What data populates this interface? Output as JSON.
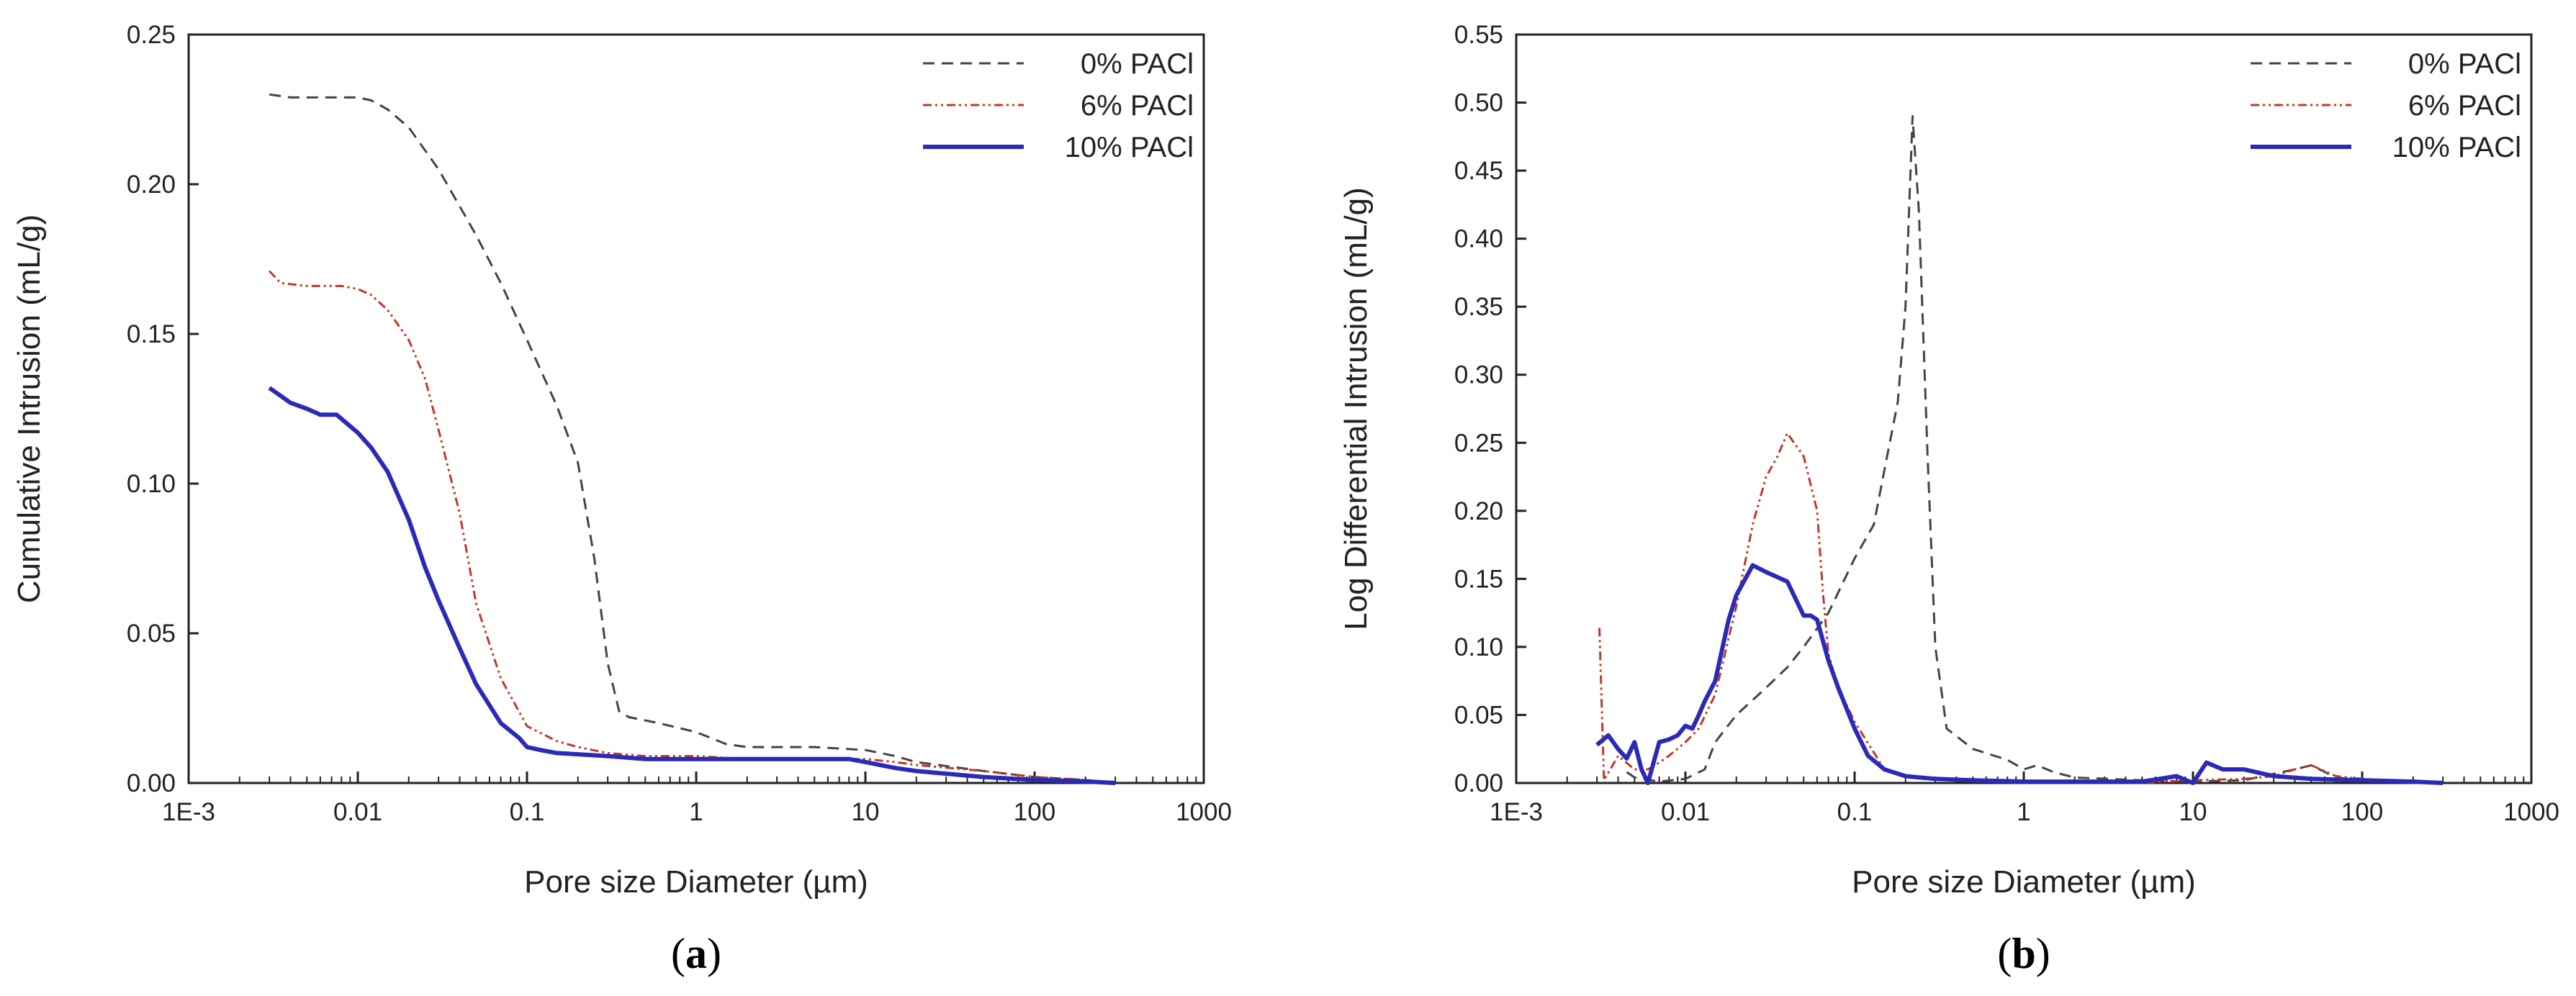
{
  "colors": {
    "s0": "#444444",
    "s6": "#c0392b",
    "s10": "#2a2ab8",
    "axis": "#222222"
  },
  "chart_data": [
    {
      "id": "a",
      "type": "line",
      "panel_label": "a",
      "title": "",
      "xlabel": "Pore size Diameter (µm)",
      "ylabel": "Cumulative Intrusion (mL/g)",
      "xscale": "log",
      "xlim": [
        0.001,
        1000
      ],
      "ylim": [
        0,
        0.25
      ],
      "xticks": [
        0.001,
        0.01,
        0.1,
        1,
        10,
        100,
        1000
      ],
      "xtick_labels": [
        "1E-3",
        "0.01",
        "0.1",
        "1",
        "10",
        "100",
        "1000"
      ],
      "yticks": [
        0,
        0.05,
        0.1,
        0.15,
        0.2,
        0.25
      ],
      "ytick_labels": [
        "0.00",
        "0.05",
        "0.10",
        "0.15",
        "0.20",
        "0.25"
      ],
      "legend_position": "top-right",
      "series": [
        {
          "name": "0% PACl",
          "style": "dash",
          "x": [
            0.003,
            0.004,
            0.006,
            0.008,
            0.01,
            0.012,
            0.015,
            0.02,
            0.03,
            0.05,
            0.07,
            0.1,
            0.15,
            0.2,
            0.25,
            0.3,
            0.35,
            0.4,
            0.6,
            1,
            1.5,
            2,
            5,
            10,
            15,
            20,
            50,
            100,
            200,
            300
          ],
          "y": [
            0.23,
            0.229,
            0.229,
            0.229,
            0.229,
            0.228,
            0.225,
            0.219,
            0.205,
            0.183,
            0.167,
            0.148,
            0.126,
            0.107,
            0.075,
            0.04,
            0.024,
            0.022,
            0.02,
            0.017,
            0.013,
            0.012,
            0.012,
            0.011,
            0.009,
            0.007,
            0.004,
            0.002,
            0.001,
            0.0
          ]
        },
        {
          "name": "6% PACl",
          "style": "dashdot",
          "x": [
            0.003,
            0.0035,
            0.005,
            0.008,
            0.01,
            0.012,
            0.015,
            0.02,
            0.025,
            0.03,
            0.04,
            0.05,
            0.07,
            0.1,
            0.15,
            0.2,
            0.3,
            0.5,
            1,
            2,
            5,
            10,
            15,
            20,
            50,
            100,
            200,
            300
          ],
          "y": [
            0.171,
            0.167,
            0.166,
            0.166,
            0.165,
            0.163,
            0.158,
            0.148,
            0.135,
            0.118,
            0.09,
            0.06,
            0.035,
            0.019,
            0.014,
            0.012,
            0.01,
            0.009,
            0.009,
            0.008,
            0.008,
            0.008,
            0.007,
            0.006,
            0.004,
            0.002,
            0.001,
            0.0
          ]
        },
        {
          "name": "10% PACl",
          "style": "solid",
          "x": [
            0.003,
            0.004,
            0.005,
            0.006,
            0.0075,
            0.01,
            0.012,
            0.015,
            0.02,
            0.025,
            0.03,
            0.04,
            0.05,
            0.07,
            0.09,
            0.1,
            0.12,
            0.15,
            0.3,
            0.5,
            1,
            2,
            5,
            8,
            10,
            15,
            20,
            50,
            100,
            200,
            300
          ],
          "y": [
            0.132,
            0.127,
            0.125,
            0.123,
            0.123,
            0.117,
            0.112,
            0.104,
            0.088,
            0.072,
            0.061,
            0.045,
            0.033,
            0.02,
            0.015,
            0.012,
            0.011,
            0.01,
            0.009,
            0.008,
            0.008,
            0.008,
            0.008,
            0.008,
            0.007,
            0.005,
            0.004,
            0.002,
            0.001,
            0.0005,
            0.0
          ]
        }
      ]
    },
    {
      "id": "b",
      "type": "line",
      "panel_label": "b",
      "title": "",
      "xlabel": "Pore size Diameter (µm)",
      "ylabel": "Log Differential Intrusion (mL/g)",
      "xscale": "log",
      "xlim": [
        0.001,
        1000
      ],
      "ylim": [
        0,
        0.55
      ],
      "xticks": [
        0.001,
        0.01,
        0.1,
        1,
        10,
        100,
        1000
      ],
      "xtick_labels": [
        "1E-3",
        "0.01",
        "0.1",
        "1",
        "10",
        "100",
        "1000"
      ],
      "yticks": [
        0,
        0.05,
        0.1,
        0.15,
        0.2,
        0.25,
        0.3,
        0.35,
        0.4,
        0.45,
        0.5,
        0.55
      ],
      "ytick_labels": [
        "0.00",
        "0.05",
        "0.10",
        "0.15",
        "0.20",
        "0.25",
        "0.30",
        "0.35",
        "0.40",
        "0.45",
        "0.50",
        "0.55"
      ],
      "legend_position": "top-right",
      "series": [
        {
          "name": "0% PACl",
          "style": "dash",
          "x": [
            0.0045,
            0.005,
            0.007,
            0.01,
            0.013,
            0.015,
            0.02,
            0.03,
            0.04,
            0.05,
            0.07,
            0.1,
            0.13,
            0.15,
            0.18,
            0.2,
            0.22,
            0.24,
            0.27,
            0.3,
            0.35,
            0.5,
            0.8,
            1,
            1.2,
            1.5,
            2,
            5,
            10,
            20,
            40,
            50,
            70,
            100,
            200,
            300
          ],
          "y": [
            0.008,
            0.004,
            0.001,
            0.003,
            0.01,
            0.03,
            0.05,
            0.07,
            0.085,
            0.1,
            0.125,
            0.165,
            0.19,
            0.23,
            0.28,
            0.35,
            0.49,
            0.42,
            0.24,
            0.1,
            0.04,
            0.025,
            0.017,
            0.01,
            0.013,
            0.008,
            0.004,
            0.002,
            0.001,
            0.002,
            0.01,
            0.013,
            0.004,
            0.002,
            0.001,
            0.0
          ]
        },
        {
          "name": "6% PACl",
          "style": "dashdot",
          "x": [
            0.0031,
            0.0033,
            0.004,
            0.005,
            0.006,
            0.007,
            0.008,
            0.01,
            0.012,
            0.015,
            0.02,
            0.025,
            0.03,
            0.035,
            0.04,
            0.05,
            0.06,
            0.065,
            0.07,
            0.08,
            0.1,
            0.15,
            0.2,
            0.5,
            1,
            2,
            5,
            10,
            20,
            30,
            40,
            50,
            70,
            100,
            200,
            300
          ],
          "y": [
            0.114,
            0.002,
            0.02,
            0.01,
            0.01,
            0.015,
            0.02,
            0.03,
            0.04,
            0.065,
            0.13,
            0.19,
            0.225,
            0.24,
            0.257,
            0.24,
            0.2,
            0.14,
            0.095,
            0.07,
            0.045,
            0.01,
            0.005,
            0.002,
            0.001,
            0.001,
            0.0,
            0.002,
            0.003,
            0.005,
            0.01,
            0.013,
            0.005,
            0.003,
            0.001,
            0.0
          ]
        },
        {
          "name": "10% PACl",
          "style": "solid",
          "x": [
            0.003,
            0.0035,
            0.004,
            0.0045,
            0.005,
            0.0055,
            0.006,
            0.007,
            0.008,
            0.009,
            0.01,
            0.011,
            0.012,
            0.013,
            0.015,
            0.018,
            0.02,
            0.025,
            0.03,
            0.04,
            0.05,
            0.055,
            0.06,
            0.07,
            0.08,
            0.1,
            0.12,
            0.15,
            0.2,
            0.3,
            0.5,
            1,
            2,
            5,
            8,
            10,
            12,
            15,
            20,
            30,
            50,
            100,
            200,
            300
          ],
          "y": [
            0.028,
            0.035,
            0.025,
            0.018,
            0.03,
            0.01,
            0.0,
            0.03,
            0.032,
            0.035,
            0.042,
            0.04,
            0.05,
            0.06,
            0.075,
            0.12,
            0.138,
            0.16,
            0.155,
            0.148,
            0.123,
            0.123,
            0.12,
            0.09,
            0.07,
            0.04,
            0.02,
            0.01,
            0.005,
            0.003,
            0.002,
            0.001,
            0.001,
            0.001,
            0.005,
            0.0,
            0.015,
            0.01,
            0.01,
            0.005,
            0.003,
            0.002,
            0.001,
            0.0
          ]
        }
      ]
    }
  ]
}
